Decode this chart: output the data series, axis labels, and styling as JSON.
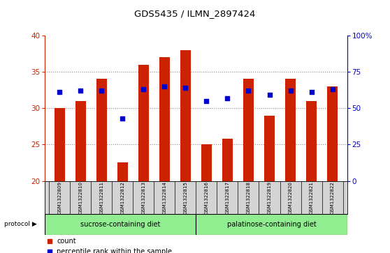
{
  "title": "GDS5435 / ILMN_2897424",
  "samples": [
    "GSM1322809",
    "GSM1322810",
    "GSM1322811",
    "GSM1322812",
    "GSM1322813",
    "GSM1322814",
    "GSM1322815",
    "GSM1322816",
    "GSM1322817",
    "GSM1322818",
    "GSM1322819",
    "GSM1322820",
    "GSM1322821",
    "GSM1322822"
  ],
  "counts": [
    30.0,
    31.0,
    34.0,
    22.5,
    36.0,
    37.0,
    38.0,
    25.0,
    25.8,
    34.0,
    29.0,
    34.0,
    31.0,
    33.0
  ],
  "percentiles_pct": [
    61,
    62,
    62,
    43,
    63,
    65,
    64,
    55,
    57,
    62,
    59,
    62,
    61,
    63
  ],
  "ylim_left": [
    20,
    40
  ],
  "yticks_left": [
    20,
    25,
    30,
    35,
    40
  ],
  "ylim_right": [
    0,
    100
  ],
  "yticks_right": [
    0,
    25,
    50,
    75,
    100
  ],
  "groups": [
    {
      "label": "sucrose-containing diet",
      "start": 0,
      "end": 7,
      "color": "#90EE90"
    },
    {
      "label": "palatinose-containing diet",
      "start": 7,
      "end": 14,
      "color": "#90EE90"
    }
  ],
  "bar_color": "#cc2200",
  "dot_color": "#0000cc",
  "bar_width": 0.5,
  "dot_size": 22,
  "grid_color": "#888888",
  "bg_color_plot": "#ffffff",
  "bg_color_xtick": "#d4d4d4",
  "left_axis_color": "#cc2200",
  "right_axis_color": "#0000cc",
  "legend_count_color": "#cc2200",
  "legend_percentile_color": "#0000cc"
}
